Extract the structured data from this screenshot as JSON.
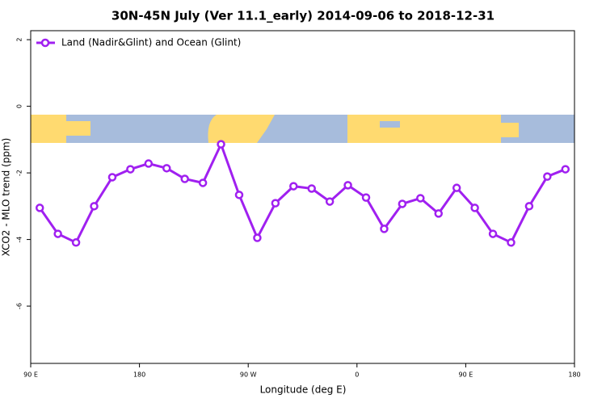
{
  "chart_data": {
    "type": "line",
    "title": "30N-45N July (Ver 11.1_early)   2014-09-06 to 2018-12-31",
    "x_label": "Longitude (deg E)",
    "y_label": "XCO2 - MLO trend (ppm)",
    "x": [
      97.5,
      112.5,
      127.5,
      142.5,
      157.5,
      172.5,
      187.5,
      202.5,
      217.5,
      232.5,
      247.5,
      262.5,
      277.5,
      292.5,
      307.5,
      322.5,
      337.5,
      352.5,
      367.5,
      382.5,
      397.5,
      412.5,
      427.5,
      442.5,
      457.5,
      472.5,
      487.5,
      502.5,
      517.5,
      532.5
    ],
    "series": [
      {
        "name": "Land (Nadir&Glint) and Ocean (Glint)",
        "color": "#a020f0",
        "values": [
          -3.05,
          -3.83,
          -4.09,
          -3.0,
          -2.13,
          -1.89,
          -1.72,
          -1.86,
          -2.18,
          -2.3,
          -1.14,
          -2.66,
          -3.95,
          -2.91,
          -2.4,
          -2.47,
          -2.86,
          -2.37,
          -2.74,
          -3.68,
          -2.93,
          -2.76,
          -3.22,
          -2.45,
          -3.05,
          -3.83,
          -4.09,
          -3.0,
          -2.11,
          -1.89
        ]
      }
    ],
    "xlim": [
      90,
      540
    ],
    "xticks": [
      {
        "value": 90,
        "label": "90 E"
      },
      180,
      {
        "value": 270,
        "label": "90 W"
      },
      {
        "value": 360,
        "label": "0"
      },
      {
        "value": 450,
        "label": "90 E"
      },
      {
        "value": 540,
        "label": "180"
      }
    ],
    "ylim": [
      -7.72,
      2.27
    ],
    "yticks": [
      2,
      0,
      -2,
      -4,
      -6
    ],
    "legend": "top-left"
  }
}
